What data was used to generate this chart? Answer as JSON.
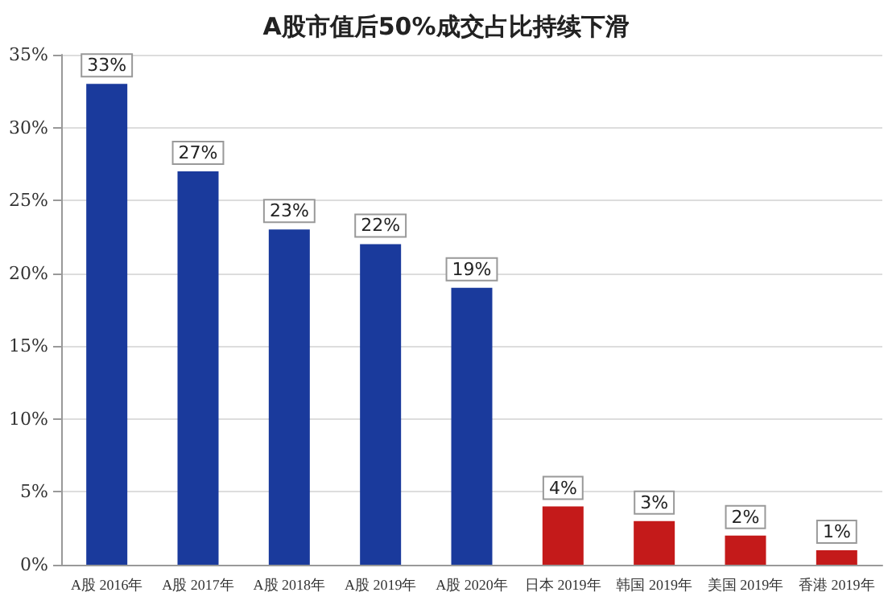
{
  "chart_data": {
    "type": "bar",
    "title": "A股市值后50%成交占比持续下滑",
    "categories": [
      "A股 2016年",
      "A股 2017年",
      "A股 2018年",
      "A股 2019年",
      "A股 2020年",
      "日本 2019年",
      "韩国 2019年",
      "美国 2019年",
      "香港 2019年"
    ],
    "values": [
      33,
      27,
      23,
      22,
      19,
      4,
      3,
      2,
      1
    ],
    "colors": [
      "#1a3a9c",
      "#1a3a9c",
      "#1a3a9c",
      "#1a3a9c",
      "#1a3a9c",
      "#c41a1a",
      "#c41a1a",
      "#c41a1a",
      "#c41a1a"
    ],
    "value_labels": [
      "33%",
      "27%",
      "23%",
      "22%",
      "19%",
      "4%",
      "3%",
      "2%",
      "1%"
    ],
    "ylim": [
      0,
      35
    ],
    "yticks": [
      {
        "value": 0,
        "label": "0%"
      },
      {
        "value": 5,
        "label": "5%"
      },
      {
        "value": 10,
        "label": "10%"
      },
      {
        "value": 15,
        "label": "15%"
      },
      {
        "value": 20,
        "label": "20%"
      },
      {
        "value": 25,
        "label": "25%"
      },
      {
        "value": 30,
        "label": "30%"
      },
      {
        "value": 35,
        "label": "35%"
      }
    ],
    "grid": "y"
  }
}
